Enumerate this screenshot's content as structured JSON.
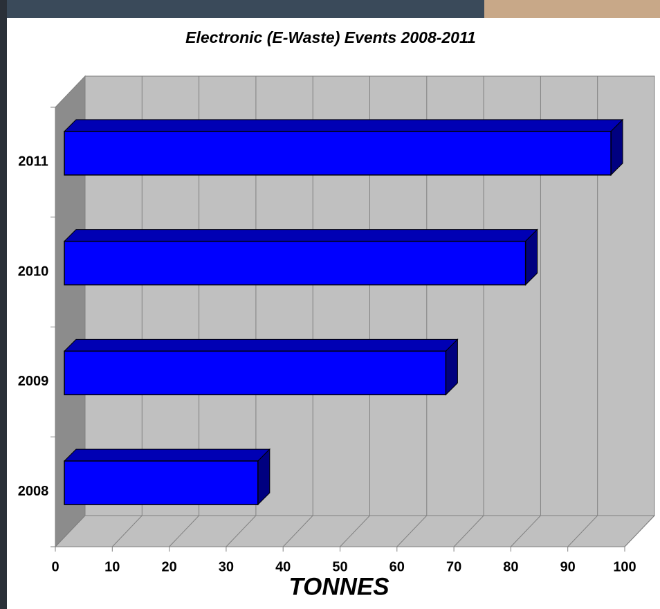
{
  "chart_data": {
    "type": "bar",
    "orientation": "horizontal",
    "three_d": true,
    "title": "Electronic (E-Waste) Events 2008-2011",
    "x_label": "TONNES",
    "categories": [
      "2008",
      "2009",
      "2010",
      "2011"
    ],
    "values": [
      34,
      67,
      81,
      96
    ],
    "color": "#0000ff",
    "xlim": [
      0,
      100
    ],
    "xticks": [
      0,
      10,
      20,
      30,
      40,
      50,
      60,
      70,
      80,
      90,
      100
    ],
    "grid": true
  }
}
